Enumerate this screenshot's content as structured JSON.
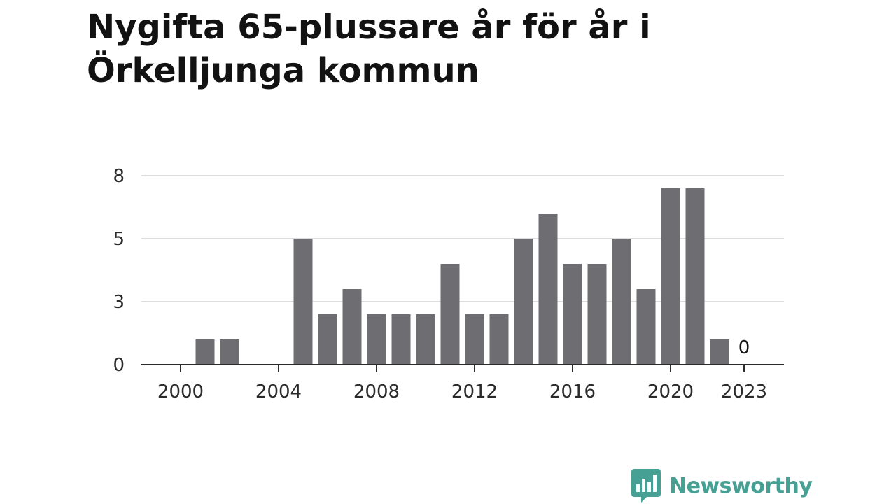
{
  "title_lines": [
    "Nygifta 65-plussare år för år i",
    "Örkelljunga kommun"
  ],
  "brand": {
    "name": "Newsworthy",
    "color": "#46a094",
    "icon": "bar-chart-badge-icon"
  },
  "chart_data": {
    "type": "bar",
    "title": "Nygifta 65-plussare år för år i Örkelljunga kommun",
    "x": [
      2000,
      2001,
      2002,
      2003,
      2004,
      2005,
      2006,
      2007,
      2008,
      2009,
      2010,
      2011,
      2012,
      2013,
      2014,
      2015,
      2016,
      2017,
      2018,
      2019,
      2020,
      2021,
      2022,
      2023
    ],
    "values": [
      0,
      1,
      1,
      0,
      0,
      5,
      2,
      3,
      2,
      2,
      2,
      4,
      2,
      2,
      5,
      6,
      4,
      4,
      5,
      3,
      7,
      7,
      1,
      0
    ],
    "x_tick_labels": [
      "2000",
      "2004",
      "2008",
      "2012",
      "2016",
      "2020",
      "2023"
    ],
    "y_tick_labels": [
      "0",
      "3",
      "5",
      "8"
    ],
    "ylim": [
      0,
      7.5
    ],
    "annotations": [
      {
        "x": 2023,
        "text": "0"
      }
    ],
    "bar_color": "#6e6d72",
    "grid": true,
    "xlabel": "",
    "ylabel": ""
  }
}
